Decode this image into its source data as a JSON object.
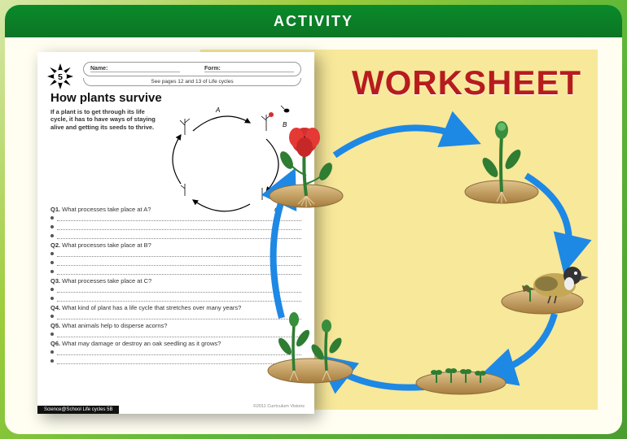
{
  "header": {
    "title": "ACTIVITY"
  },
  "label": {
    "worksheet": "WORKSHEET"
  },
  "worksheet": {
    "number": "5",
    "name_label": "Name:",
    "form_label": "Form:",
    "see_pages": "See pages 12 and 13 of Life cycles",
    "title": "How plants survive",
    "intro": "If a plant is to get through its life cycle, it has to have ways of staying alive and getting its seeds to thrive.",
    "questions": [
      {
        "num": "Q1.",
        "text": "What processes take place at A?",
        "lines": 3
      },
      {
        "num": "Q2.",
        "text": "What processes take place at B?",
        "lines": 3
      },
      {
        "num": "Q3.",
        "text": "What processes take place at C?",
        "lines": 2
      },
      {
        "num": "Q4.",
        "text": "What kind of plant has a life cycle that stretches over many years?",
        "lines": 1
      },
      {
        "num": "Q5.",
        "text": "What animals help to disperse acorns?",
        "lines": 1
      },
      {
        "num": "Q6.",
        "text": "What may damage or destroy an oak seedling as it grows?",
        "lines": 2
      }
    ],
    "footer": "Science@School Life cycles 5B",
    "copyright": "©2011 Curriculum Visions",
    "diagram_labels": {
      "a": "A",
      "b": "B",
      "c": "C"
    }
  },
  "style": {
    "header_bg_top": "#0a8a2a",
    "header_bg_bottom": "#0c7525",
    "page_bg": "#fffef0",
    "panel_bg": "#f7e89a",
    "title_color": "#b71c1c",
    "arrow_color": "#1e88e5",
    "soil_fill": "#c9a66b",
    "plant_stem": "#2e7d32",
    "plant_dark": "#1b5e20",
    "flower_red": "#d32f2f",
    "bird_body": "#c4a856",
    "bird_head": "#333333",
    "title_fontsize": 42
  },
  "cycle": {
    "stages": [
      "flowering-plant",
      "bud-plant",
      "bird-eating-seed",
      "seedlings",
      "young-plants"
    ],
    "arrow_width": 8
  }
}
